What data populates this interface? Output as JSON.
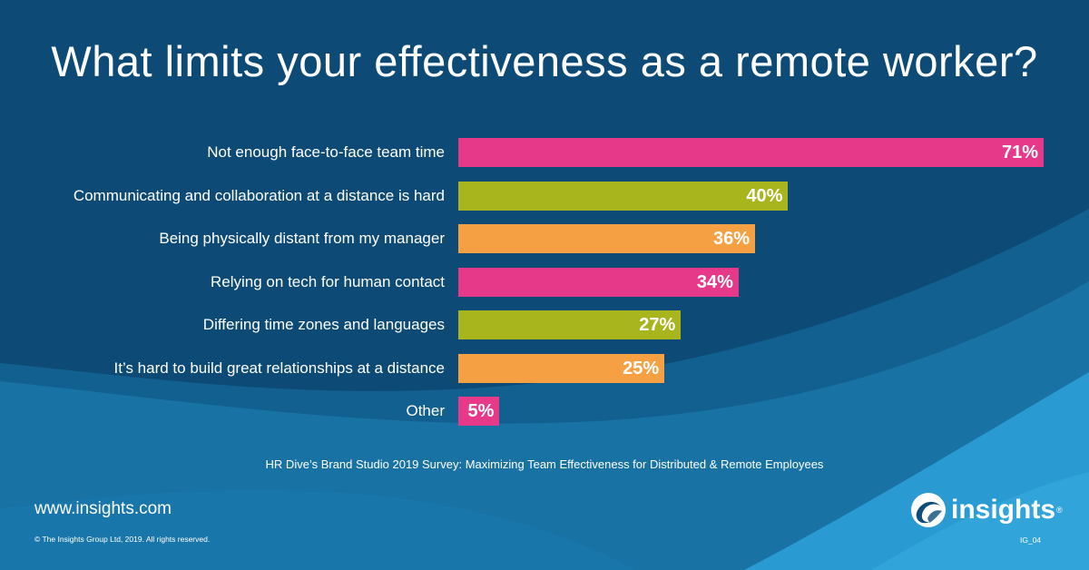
{
  "title": "What limits your effectiveness as a remote worker?",
  "chart_data": {
    "type": "bar",
    "orientation": "horizontal",
    "categories": [
      "Not enough face-to-face team time",
      "Communicating and collaboration at a distance is hard",
      "Being physically distant from my manager",
      "Relying on tech for human contact",
      "Differing time zones and languages",
      "It’s hard to build great relationships at a distance",
      "Other"
    ],
    "values": [
      71,
      40,
      36,
      34,
      27,
      25,
      5
    ],
    "value_labels": [
      "71%",
      "40%",
      "36%",
      "34%",
      "27%",
      "25%",
      "5%"
    ],
    "bar_colors": [
      "#e6398a",
      "#a8b51c",
      "#f5a143",
      "#e6398a",
      "#a8b51c",
      "#f5a143",
      "#e6398a"
    ],
    "xlim": [
      0,
      71
    ],
    "grid": false,
    "legend": "none"
  },
  "source": "HR Dive’s Brand Studio 2019 Survey: Maximizing Team Effectiveness for Distributed & Remote Employees",
  "footer": {
    "website": "www.insights.com",
    "copyright": "© The Insights Group Ltd, 2019. All rights reserved.",
    "code": "IG_04"
  },
  "logo": {
    "text": "insights",
    "reg": "®",
    "icon": "insights-swirl-logo-icon"
  },
  "colors": {
    "background": "#0d4d78",
    "accent_light": "#2e9fd3"
  }
}
